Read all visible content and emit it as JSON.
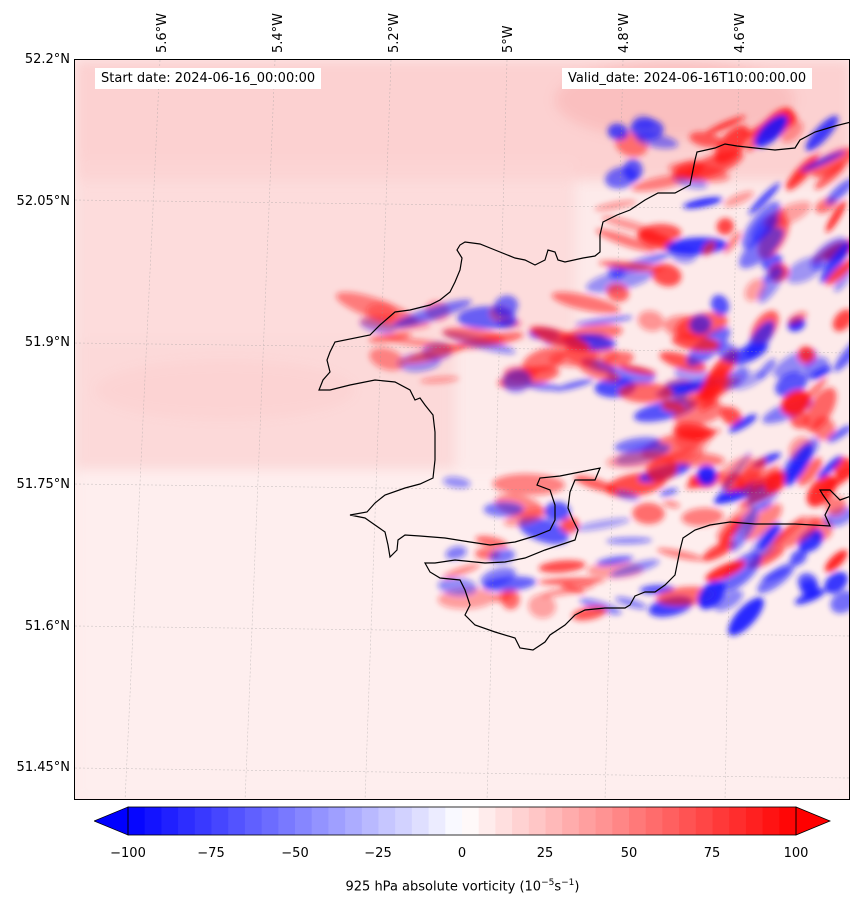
{
  "header": {
    "start_label": "Start date: 2024-06-16_00:00:00",
    "valid_label": "Valid_date: 2024-06-16T10:00:00.00"
  },
  "lat_labels": [
    "52.2°N",
    "52.05°N",
    "51.9°N",
    "51.75°N",
    "51.6°N",
    "51.45°N"
  ],
  "lon_labels": [
    "5.6°W",
    "5.4°W",
    "5.2°W",
    "5°W",
    "4.8°W",
    "4.6°W"
  ],
  "colorbar": {
    "ticks": [
      "−100",
      "−75",
      "−50",
      "−25",
      "0",
      "25",
      "50",
      "75",
      "100"
    ],
    "label_text": "925 hPa absolute vorticity (10",
    "label_sup1": "−5",
    "label_mid": "s",
    "label_sup2": "−1",
    "label_end": ")",
    "min": -100,
    "max": 100,
    "colors": {
      "negative": "#0000ff",
      "neutral": "#ffffff",
      "positive": "#ff0000"
    }
  },
  "map": {
    "background_color": "#fdeaea",
    "coastline_color": "#000000"
  }
}
